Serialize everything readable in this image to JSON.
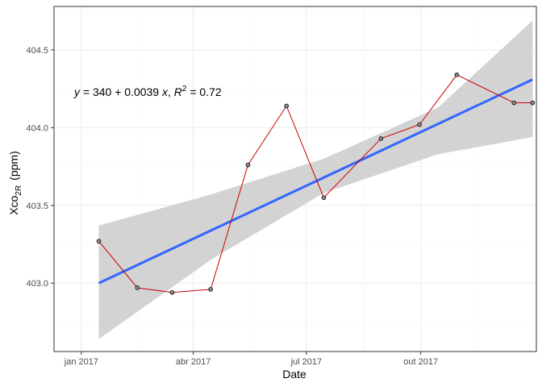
{
  "chart_data": {
    "type": "scatter",
    "xlabel": "Date",
    "ylabel": {
      "main": "Xco",
      "subscript": "2R",
      "unit": "(ppm)"
    },
    "equation": {
      "y": "y",
      "equals1": " = 340 + 0.0039 ",
      "x": "x",
      "comma": ",  ",
      "r": "R",
      "sup": "2",
      "equals2": " = 0.72"
    },
    "xlim": [
      "2016-12-10",
      "2018-01-02"
    ],
    "ylim": [
      402.56,
      404.78
    ],
    "x_ticks": [
      {
        "date": "2017-01-01",
        "label": "jan 2017"
      },
      {
        "date": "2017-04-01",
        "label": "abr 2017"
      },
      {
        "date": "2017-07-01",
        "label": "jul 2017"
      },
      {
        "date": "2017-10-01",
        "label": "out 2017"
      }
    ],
    "y_ticks": [
      {
        "value": 403.0,
        "label": "403.0"
      },
      {
        "value": 403.5,
        "label": "403.5"
      },
      {
        "value": 404.0,
        "label": "404.0"
      },
      {
        "value": 404.5,
        "label": "404.5"
      }
    ],
    "grid": true,
    "series": [
      {
        "x": [
          "2017-01-15",
          "2017-02-15",
          "2017-03-15",
          "2017-04-15",
          "2017-05-15",
          "2017-06-15",
          "2017-07-15",
          "2017-08-30",
          "2017-09-30",
          "2017-10-30",
          "2017-12-15",
          "2017-12-30"
        ],
        "y": [
          403.27,
          402.97,
          402.94,
          402.96,
          403.76,
          404.14,
          403.55,
          403.93,
          404.02,
          404.34,
          404.16,
          404.16
        ],
        "color": "#cc0000",
        "point_fill": "#8c8c8c"
      }
    ],
    "trend": {
      "x": [
        "2017-01-15",
        "2017-12-30"
      ],
      "y": [
        403.0,
        404.31
      ],
      "color": "#3366ff"
    },
    "confidence_band": {
      "x": [
        "2017-01-15",
        "2017-04-15",
        "2017-07-15",
        "2017-10-15",
        "2017-12-30"
      ],
      "upper": [
        403.37,
        403.57,
        403.8,
        404.13,
        404.69
      ],
      "lower": [
        402.64,
        403.15,
        403.58,
        403.83,
        403.94
      ],
      "color": "#d3d3d3"
    }
  }
}
